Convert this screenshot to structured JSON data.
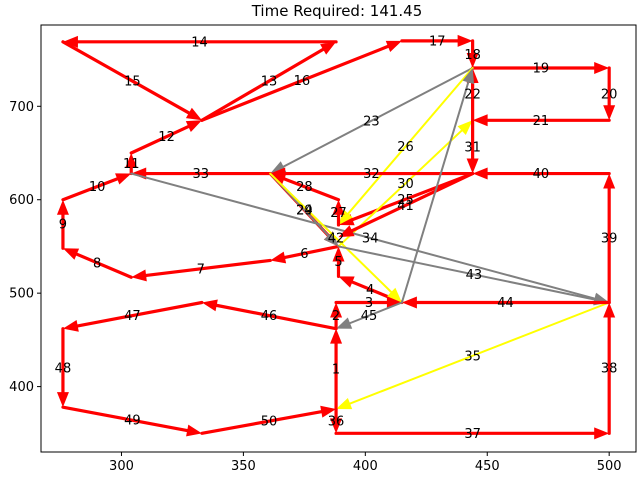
{
  "chart_data": {
    "type": "line",
    "title": "Time Required: 141.45",
    "xlabel": "",
    "ylabel": "",
    "xlim": [
      267,
      511
    ],
    "ylim": [
      330,
      787
    ],
    "xticks": [
      300,
      350,
      400,
      450,
      500
    ],
    "yticks": [
      400,
      500,
      600,
      700
    ],
    "grid": false,
    "colors": {
      "red": "#ff0000",
      "yellow": "#ffff00",
      "gray": "#808080"
    },
    "edges": [
      {
        "label": "1",
        "color": "red",
        "from": [
          388,
          376
        ],
        "to": [
          388,
          462
        ]
      },
      {
        "label": "2",
        "color": "red",
        "from": [
          388,
          462
        ],
        "to": [
          388,
          490
        ]
      },
      {
        "label": "3",
        "color": "red",
        "from": [
          388,
          490
        ],
        "to": [
          415,
          490
        ]
      },
      {
        "label": "4",
        "color": "red",
        "from": [
          415,
          490
        ],
        "to": [
          389,
          518
        ]
      },
      {
        "label": "5",
        "color": "red",
        "from": [
          389,
          518
        ],
        "to": [
          389,
          550
        ]
      },
      {
        "label": "6",
        "color": "red",
        "from": [
          389,
          550
        ],
        "to": [
          361,
          535
        ]
      },
      {
        "label": "7",
        "color": "red",
        "from": [
          361,
          535
        ],
        "to": [
          304,
          517
        ]
      },
      {
        "label": "8",
        "color": "red",
        "from": [
          304,
          517
        ],
        "to": [
          276,
          548
        ]
      },
      {
        "label": "9",
        "color": "red",
        "from": [
          276,
          548
        ],
        "to": [
          276,
          600
        ]
      },
      {
        "label": "10",
        "color": "red",
        "from": [
          276,
          600
        ],
        "to": [
          304,
          628
        ]
      },
      {
        "label": "11",
        "color": "red",
        "from": [
          304,
          628
        ],
        "to": [
          304,
          650
        ]
      },
      {
        "label": "12",
        "color": "red",
        "from": [
          304,
          650
        ],
        "to": [
          333,
          685
        ]
      },
      {
        "label": "13",
        "color": "red",
        "from": [
          333,
          685
        ],
        "to": [
          388,
          769
        ]
      },
      {
        "label": "14",
        "color": "red",
        "from": [
          388,
          769
        ],
        "to": [
          276,
          769
        ]
      },
      {
        "label": "15",
        "color": "red",
        "from": [
          276,
          769
        ],
        "to": [
          333,
          685
        ]
      },
      {
        "label": "16",
        "color": "red",
        "from": [
          333,
          685
        ],
        "to": [
          415,
          770
        ]
      },
      {
        "label": "17",
        "color": "red",
        "from": [
          415,
          770
        ],
        "to": [
          444,
          770
        ]
      },
      {
        "label": "18",
        "color": "red",
        "from": [
          444,
          770
        ],
        "to": [
          444,
          741
        ]
      },
      {
        "label": "19",
        "color": "red",
        "from": [
          444,
          741
        ],
        "to": [
          500,
          741
        ]
      },
      {
        "label": "20",
        "color": "red",
        "from": [
          500,
          741
        ],
        "to": [
          500,
          685
        ]
      },
      {
        "label": "21",
        "color": "red",
        "from": [
          500,
          685
        ],
        "to": [
          444,
          685
        ]
      },
      {
        "label": "22",
        "color": "red",
        "from": [
          444,
          685
        ],
        "to": [
          444,
          741
        ]
      },
      {
        "label": "23",
        "color": "gray",
        "from": [
          444,
          741
        ],
        "to": [
          361,
          628
        ]
      },
      {
        "label": "24",
        "color": "red",
        "from": [
          361,
          628
        ],
        "to": [
          389,
          550
        ]
      },
      {
        "label": "25",
        "color": "red",
        "from": [
          444,
          628
        ],
        "to": [
          389,
          573
        ]
      },
      {
        "label": "26",
        "color": "yellow",
        "from": [
          444,
          741
        ],
        "to": [
          389,
          573
        ]
      },
      {
        "label": "27",
        "color": "red",
        "from": [
          389,
          573
        ],
        "to": [
          389,
          600
        ]
      },
      {
        "label": "28",
        "color": "red",
        "from": [
          389,
          600
        ],
        "to": [
          361,
          628
        ]
      },
      {
        "label": "29",
        "color": "gray",
        "from": [
          361,
          628
        ],
        "to": [
          389,
          550
        ]
      },
      {
        "label": "30",
        "color": "yellow",
        "from": [
          389,
          550
        ],
        "to": [
          444,
          685
        ]
      },
      {
        "label": "31",
        "color": "red",
        "from": [
          444,
          685
        ],
        "to": [
          444,
          628
        ]
      },
      {
        "label": "32",
        "color": "red",
        "from": [
          444,
          628
        ],
        "to": [
          361,
          628
        ]
      },
      {
        "label": "33",
        "color": "red",
        "from": [
          361,
          628
        ],
        "to": [
          304,
          628
        ]
      },
      {
        "label": "34",
        "color": "gray",
        "from": [
          304,
          628
        ],
        "to": [
          500,
          490
        ]
      },
      {
        "label": "35",
        "color": "yellow",
        "from": [
          500,
          490
        ],
        "to": [
          388,
          376
        ]
      },
      {
        "label": "36",
        "color": "red",
        "from": [
          388,
          376
        ],
        "to": [
          388,
          350
        ]
      },
      {
        "label": "37",
        "color": "red",
        "from": [
          388,
          350
        ],
        "to": [
          500,
          350
        ]
      },
      {
        "label": "38",
        "color": "red",
        "from": [
          500,
          350
        ],
        "to": [
          500,
          490
        ]
      },
      {
        "label": "39",
        "color": "red",
        "from": [
          500,
          490
        ],
        "to": [
          500,
          628
        ]
      },
      {
        "label": "40",
        "color": "red",
        "from": [
          500,
          628
        ],
        "to": [
          444,
          628
        ]
      },
      {
        "label": "41",
        "color": "red",
        "from": [
          444,
          628
        ],
        "to": [
          389,
          560
        ]
      },
      {
        "label": "42",
        "color": "yellow",
        "from": [
          361,
          628
        ],
        "to": [
          415,
          490
        ]
      },
      {
        "label": "43",
        "color": "gray",
        "from": [
          389,
          550
        ],
        "to": [
          500,
          490
        ]
      },
      {
        "label": "44",
        "color": "red",
        "from": [
          500,
          490
        ],
        "to": [
          415,
          490
        ]
      },
      {
        "label": "45",
        "color": "gray",
        "from": [
          415,
          490
        ],
        "to": [
          388,
          462
        ]
      },
      {
        "label": "46",
        "color": "red",
        "from": [
          388,
          462
        ],
        "to": [
          333,
          490
        ]
      },
      {
        "label": "47",
        "color": "red",
        "from": [
          333,
          490
        ],
        "to": [
          276,
          462
        ]
      },
      {
        "label": "48",
        "color": "red",
        "from": [
          276,
          462
        ],
        "to": [
          276,
          378
        ]
      },
      {
        "label": "49",
        "color": "red",
        "from": [
          276,
          378
        ],
        "to": [
          333,
          350
        ]
      },
      {
        "label": "50",
        "color": "red",
        "from": [
          333,
          350
        ],
        "to": [
          388,
          376
        ]
      },
      {
        "label": "",
        "color": "gray",
        "from": [
          415,
          490
        ],
        "to": [
          444,
          741
        ]
      }
    ]
  }
}
